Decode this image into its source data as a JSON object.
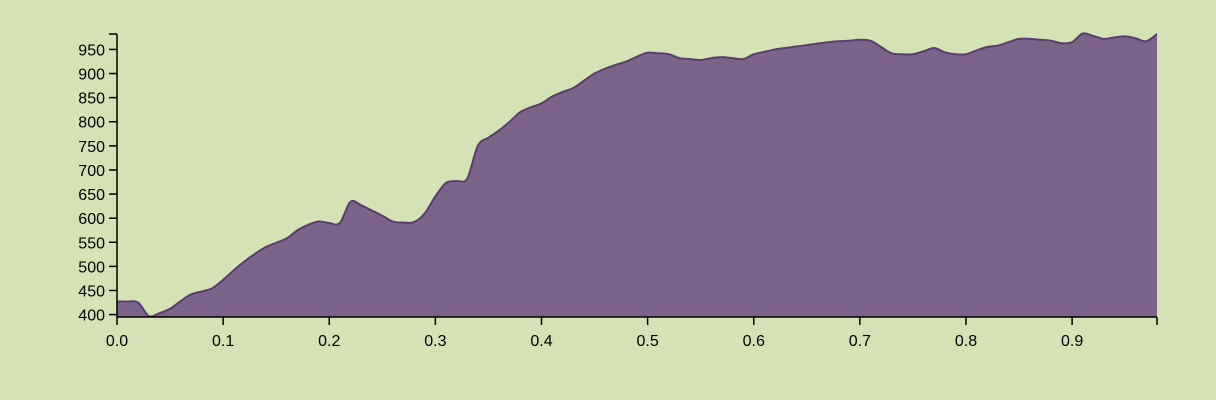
{
  "chart_data": {
    "type": "area",
    "title": "",
    "xlabel": "",
    "ylabel": "",
    "xlim": [
      0,
      0.98
    ],
    "ylim": [
      395,
      982
    ],
    "x_ticks": [
      "0.0",
      "0.1",
      "0.2",
      "0.3",
      "0.4",
      "0.5",
      "0.6",
      "0.7",
      "0.8",
      "0.9"
    ],
    "y_ticks": [
      "400",
      "450",
      "500",
      "550",
      "600",
      "650",
      "700",
      "750",
      "800",
      "850",
      "900",
      "950"
    ],
    "grid": false,
    "legend": "none",
    "fill_color": "#7b6389",
    "stroke_color": "#5a3f6c",
    "background_color": "#d4e2b6",
    "series": [
      {
        "x": [
          0,
          0.01,
          0.02,
          0.03,
          0.04,
          0.05,
          0.06,
          0.07,
          0.08,
          0.09,
          0.1,
          0.11,
          0.12,
          0.13,
          0.14,
          0.15,
          0.16,
          0.17,
          0.18,
          0.19,
          0.2,
          0.21,
          0.22,
          0.23,
          0.24,
          0.25,
          0.26,
          0.27,
          0.28,
          0.29,
          0.3,
          0.31,
          0.32,
          0.33,
          0.34,
          0.35,
          0.36,
          0.37,
          0.38,
          0.39,
          0.4,
          0.41,
          0.42,
          0.43,
          0.44,
          0.45,
          0.46,
          0.47,
          0.48,
          0.49,
          0.5,
          0.51,
          0.52,
          0.53,
          0.54,
          0.55,
          0.56,
          0.57,
          0.58,
          0.59,
          0.6,
          0.61,
          0.62,
          0.63,
          0.64,
          0.65,
          0.66,
          0.67,
          0.68,
          0.69,
          0.7,
          0.71,
          0.72,
          0.73,
          0.74,
          0.75,
          0.76,
          0.77,
          0.78,
          0.79,
          0.8,
          0.81,
          0.82,
          0.83,
          0.84,
          0.85,
          0.86,
          0.87,
          0.88,
          0.89,
          0.9,
          0.91,
          0.92,
          0.93,
          0.94,
          0.95,
          0.96,
          0.97,
          0.98
        ],
        "values": [
          427,
          427,
          425,
          397,
          403,
          412,
          428,
          442,
          448,
          455,
          472,
          492,
          510,
          526,
          540,
          549,
          558,
          575,
          586,
          593,
          590,
          590,
          634,
          627,
          616,
          605,
          593,
          591,
          592,
          610,
          645,
          673,
          677,
          682,
          750,
          767,
          782,
          800,
          820,
          830,
          838,
          852,
          862,
          870,
          885,
          900,
          910,
          918,
          925,
          935,
          943,
          942,
          940,
          932,
          930,
          928,
          932,
          934,
          932,
          930,
          940,
          945,
          950,
          953,
          956,
          959,
          962,
          965,
          967,
          968,
          970,
          968,
          955,
          942,
          940,
          940,
          946,
          953,
          944,
          940,
          940,
          948,
          955,
          958,
          965,
          972,
          972,
          970,
          968,
          963,
          965,
          983,
          978,
          972,
          975,
          977,
          973,
          967,
          982
        ]
      }
    ]
  }
}
